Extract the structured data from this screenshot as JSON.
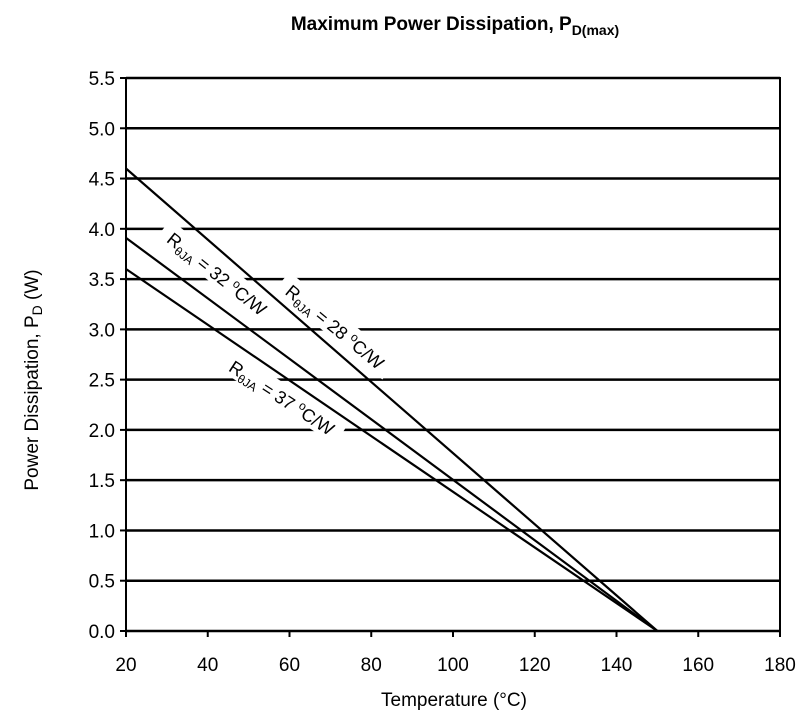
{
  "chart_data": {
    "type": "line",
    "title": {
      "main": "Maximum Power Dissipation, P",
      "sub": "D(max)"
    },
    "xlabel": "Temperature (°C)",
    "ylabel": {
      "main": "Power Dissipation, P",
      "sub": "D",
      "unit": " (W)"
    },
    "xlim": [
      20,
      180
    ],
    "ylim": [
      0,
      5.5
    ],
    "x_ticks": [
      "20",
      "40",
      "60",
      "80",
      "100",
      "120",
      "140",
      "160",
      "180"
    ],
    "y_ticks": [
      "0.0",
      "0.5",
      "1.0",
      "1.5",
      "2.0",
      "2.5",
      "3.0",
      "3.5",
      "4.0",
      "4.5",
      "5.0",
      "5.5"
    ],
    "grid": "horizontal",
    "series": [
      {
        "name": "RθJA = 28 °C/W",
        "label": {
          "r": "R",
          "sub": "θJA",
          "eq": " = 28 ",
          "deg": "o",
          "unit": "C/W"
        },
        "x": [
          20,
          150
        ],
        "y": [
          4.6,
          0.0
        ]
      },
      {
        "name": "RθJA = 32 °C/W",
        "label": {
          "r": "R",
          "sub": "θJA",
          "eq": " = 32 ",
          "deg": "o",
          "unit": "C/W"
        },
        "x": [
          20,
          150
        ],
        "y": [
          3.91,
          0.0
        ]
      },
      {
        "name": "RθJA = 37 °C/W",
        "label": {
          "r": "R",
          "sub": "θJA",
          "eq": " = 37 ",
          "deg": "o",
          "unit": "C/W"
        },
        "x": [
          20,
          150
        ],
        "y": [
          3.6,
          0.0
        ]
      }
    ]
  }
}
